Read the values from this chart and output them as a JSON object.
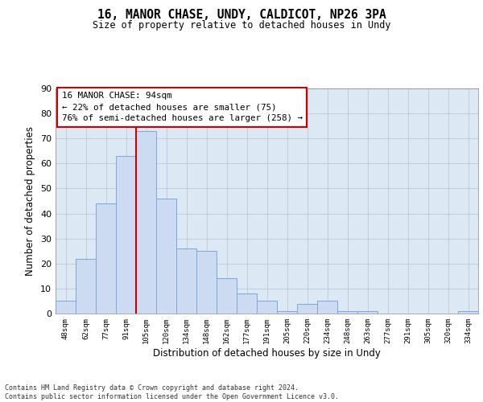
{
  "title_line1": "16, MANOR CHASE, UNDY, CALDICOT, NP26 3PA",
  "title_line2": "Size of property relative to detached houses in Undy",
  "xlabel": "Distribution of detached houses by size in Undy",
  "ylabel": "Number of detached properties",
  "bar_labels": [
    "48sqm",
    "62sqm",
    "77sqm",
    "91sqm",
    "105sqm",
    "120sqm",
    "134sqm",
    "148sqm",
    "162sqm",
    "177sqm",
    "191sqm",
    "205sqm",
    "220sqm",
    "234sqm",
    "248sqm",
    "263sqm",
    "277sqm",
    "291sqm",
    "305sqm",
    "320sqm",
    "334sqm"
  ],
  "bar_values": [
    5,
    22,
    44,
    63,
    73,
    46,
    26,
    25,
    14,
    8,
    5,
    1,
    4,
    5,
    1,
    1,
    0,
    0,
    0,
    0,
    1
  ],
  "bar_color": "#ccdaf2",
  "bar_edge_color": "#7aa8d8",
  "vline_position": 3.5,
  "vline_color": "#cc0000",
  "annotation_text": "16 MANOR CHASE: 94sqm\n← 22% of detached houses are smaller (75)\n76% of semi-detached houses are larger (258) →",
  "annotation_box_edgecolor": "#cc0000",
  "ylim": [
    0,
    90
  ],
  "yticks": [
    0,
    10,
    20,
    30,
    40,
    50,
    60,
    70,
    80,
    90
  ],
  "grid_color": "#b8c8dc",
  "background_color": "#dde8f5",
  "footer_line1": "Contains HM Land Registry data © Crown copyright and database right 2024.",
  "footer_line2": "Contains public sector information licensed under the Open Government Licence v3.0."
}
